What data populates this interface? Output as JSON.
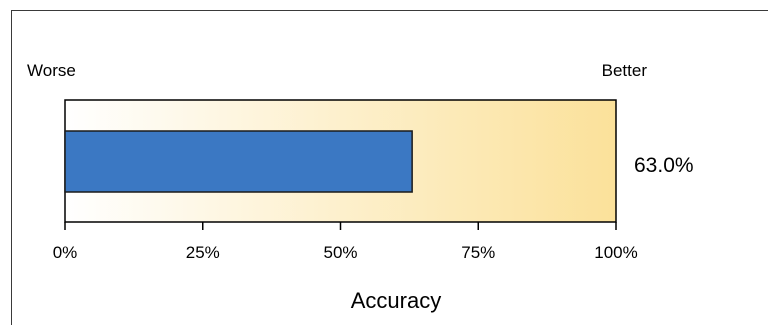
{
  "chart_data": {
    "type": "bar",
    "orientation": "horizontal",
    "xlabel": "Accuracy",
    "left_label": "Worse",
    "right_label": "Better",
    "xlim": [
      0,
      100
    ],
    "ticks": [
      "0%",
      "25%",
      "50%",
      "75%",
      "100%"
    ],
    "tick_values": [
      0,
      25,
      50,
      75,
      100
    ],
    "values": [
      63.0
    ],
    "value_label": "63.0%",
    "bar_color": "#3b78c3",
    "background_gradient": [
      "#ffffff",
      "#fbe19a"
    ],
    "grid": false,
    "legend": "none"
  }
}
